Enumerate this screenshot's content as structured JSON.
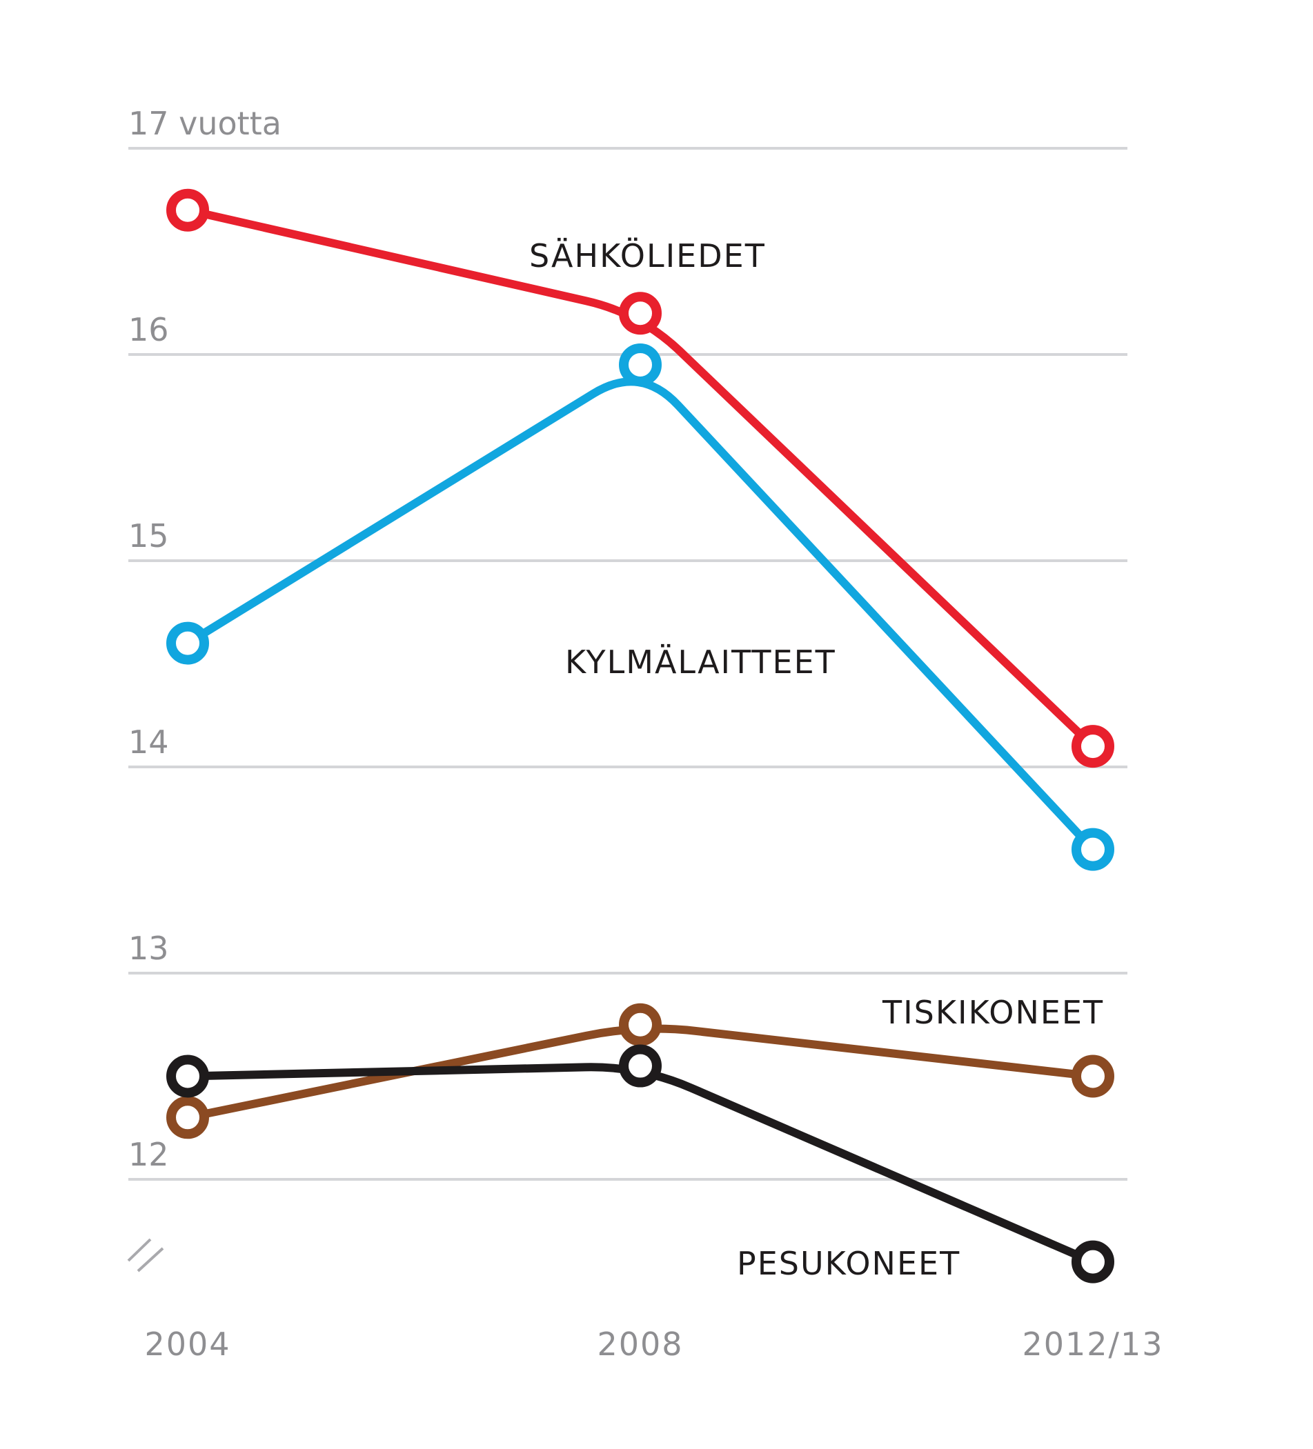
{
  "chart_data": {
    "type": "line",
    "title": "",
    "xlabel": "",
    "ylabel": "",
    "x": [
      "2004",
      "2008",
      "2012/13"
    ],
    "ylim": [
      12,
      17
    ],
    "yticks": [
      {
        "value": 17,
        "label": "17 vuotta"
      },
      {
        "value": 16,
        "label": "16"
      },
      {
        "value": 15,
        "label": "15"
      },
      {
        "value": 14,
        "label": "14"
      },
      {
        "value": 13,
        "label": "13"
      },
      {
        "value": 12,
        "label": "12"
      }
    ],
    "grid": true,
    "axis_break": true,
    "series": [
      {
        "name": "SÄHKÖLIEDET",
        "color": "#e8202d",
        "values": [
          16.7,
          16.2,
          14.1
        ]
      },
      {
        "name": "KYLMÄLAITTEET",
        "color": "#11a6df",
        "values": [
          14.6,
          15.95,
          13.6
        ]
      },
      {
        "name": "TISKIKONEET",
        "color": "#8b4a22",
        "values": [
          12.3,
          12.75,
          12.5
        ]
      },
      {
        "name": "PESUKONEET",
        "color": "#1e1b1c",
        "values": [
          12.5,
          12.55,
          11.6
        ]
      }
    ]
  }
}
